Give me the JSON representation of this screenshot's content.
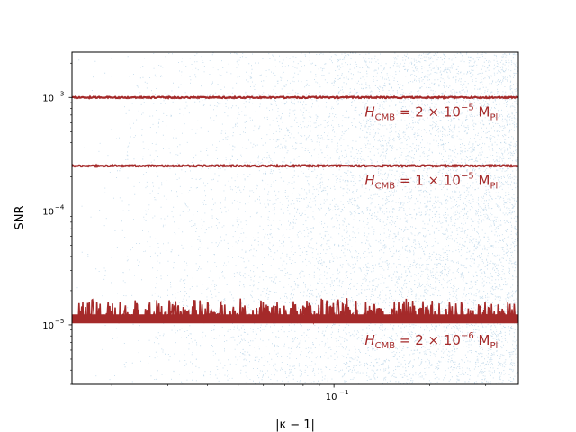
{
  "chart_data": {
    "type": "scatter",
    "xlabel": "|κ − 1|",
    "ylabel": "SNR",
    "xscale": "log",
    "yscale": "log",
    "xlim": [
      0.015,
      0.38
    ],
    "ylim": [
      3e-06,
      0.0025
    ],
    "grid": false,
    "x_ticks": [
      {
        "value": 0.1,
        "label": "10",
        "exp": "−1"
      }
    ],
    "y_ticks": [
      {
        "value": 1e-05,
        "label": "10",
        "exp": "−5"
      },
      {
        "value": 0.0001,
        "label": "10",
        "exp": "−4"
      },
      {
        "value": 0.001,
        "label": "10",
        "exp": "−3"
      }
    ],
    "scatter": {
      "description_color": "#1f77b4",
      "x_range": [
        0.015,
        0.38
      ],
      "y_range": [
        3e-06,
        0.0025
      ],
      "density": "increasing toward large x"
    },
    "series": [
      {
        "baseline": 0.001,
        "noise": "small",
        "color": "#a52a2a"
      },
      {
        "baseline": 0.00025,
        "noise": "small",
        "color": "#a52a2a"
      },
      {
        "baseline": 1.05e-05,
        "noise": "large",
        "color": "#a52a2a"
      }
    ],
    "annotations": [
      {
        "pre": "H",
        "sub": "CMB",
        "mid": " = 2 × 10",
        "exp": "−5",
        "post": " M",
        "sub2": "Pl",
        "x": 0.125,
        "y": 0.00068
      },
      {
        "pre": "H",
        "sub": "CMB",
        "mid": " = 1 × 10",
        "exp": "−5",
        "post": " M",
        "sub2": "Pl",
        "x": 0.125,
        "y": 0.00017
      },
      {
        "pre": "H",
        "sub": "CMB",
        "mid": " = 2 × 10",
        "exp": "−6",
        "post": " M",
        "sub2": "Pl",
        "x": 0.125,
        "y": 6.7e-06
      }
    ]
  }
}
